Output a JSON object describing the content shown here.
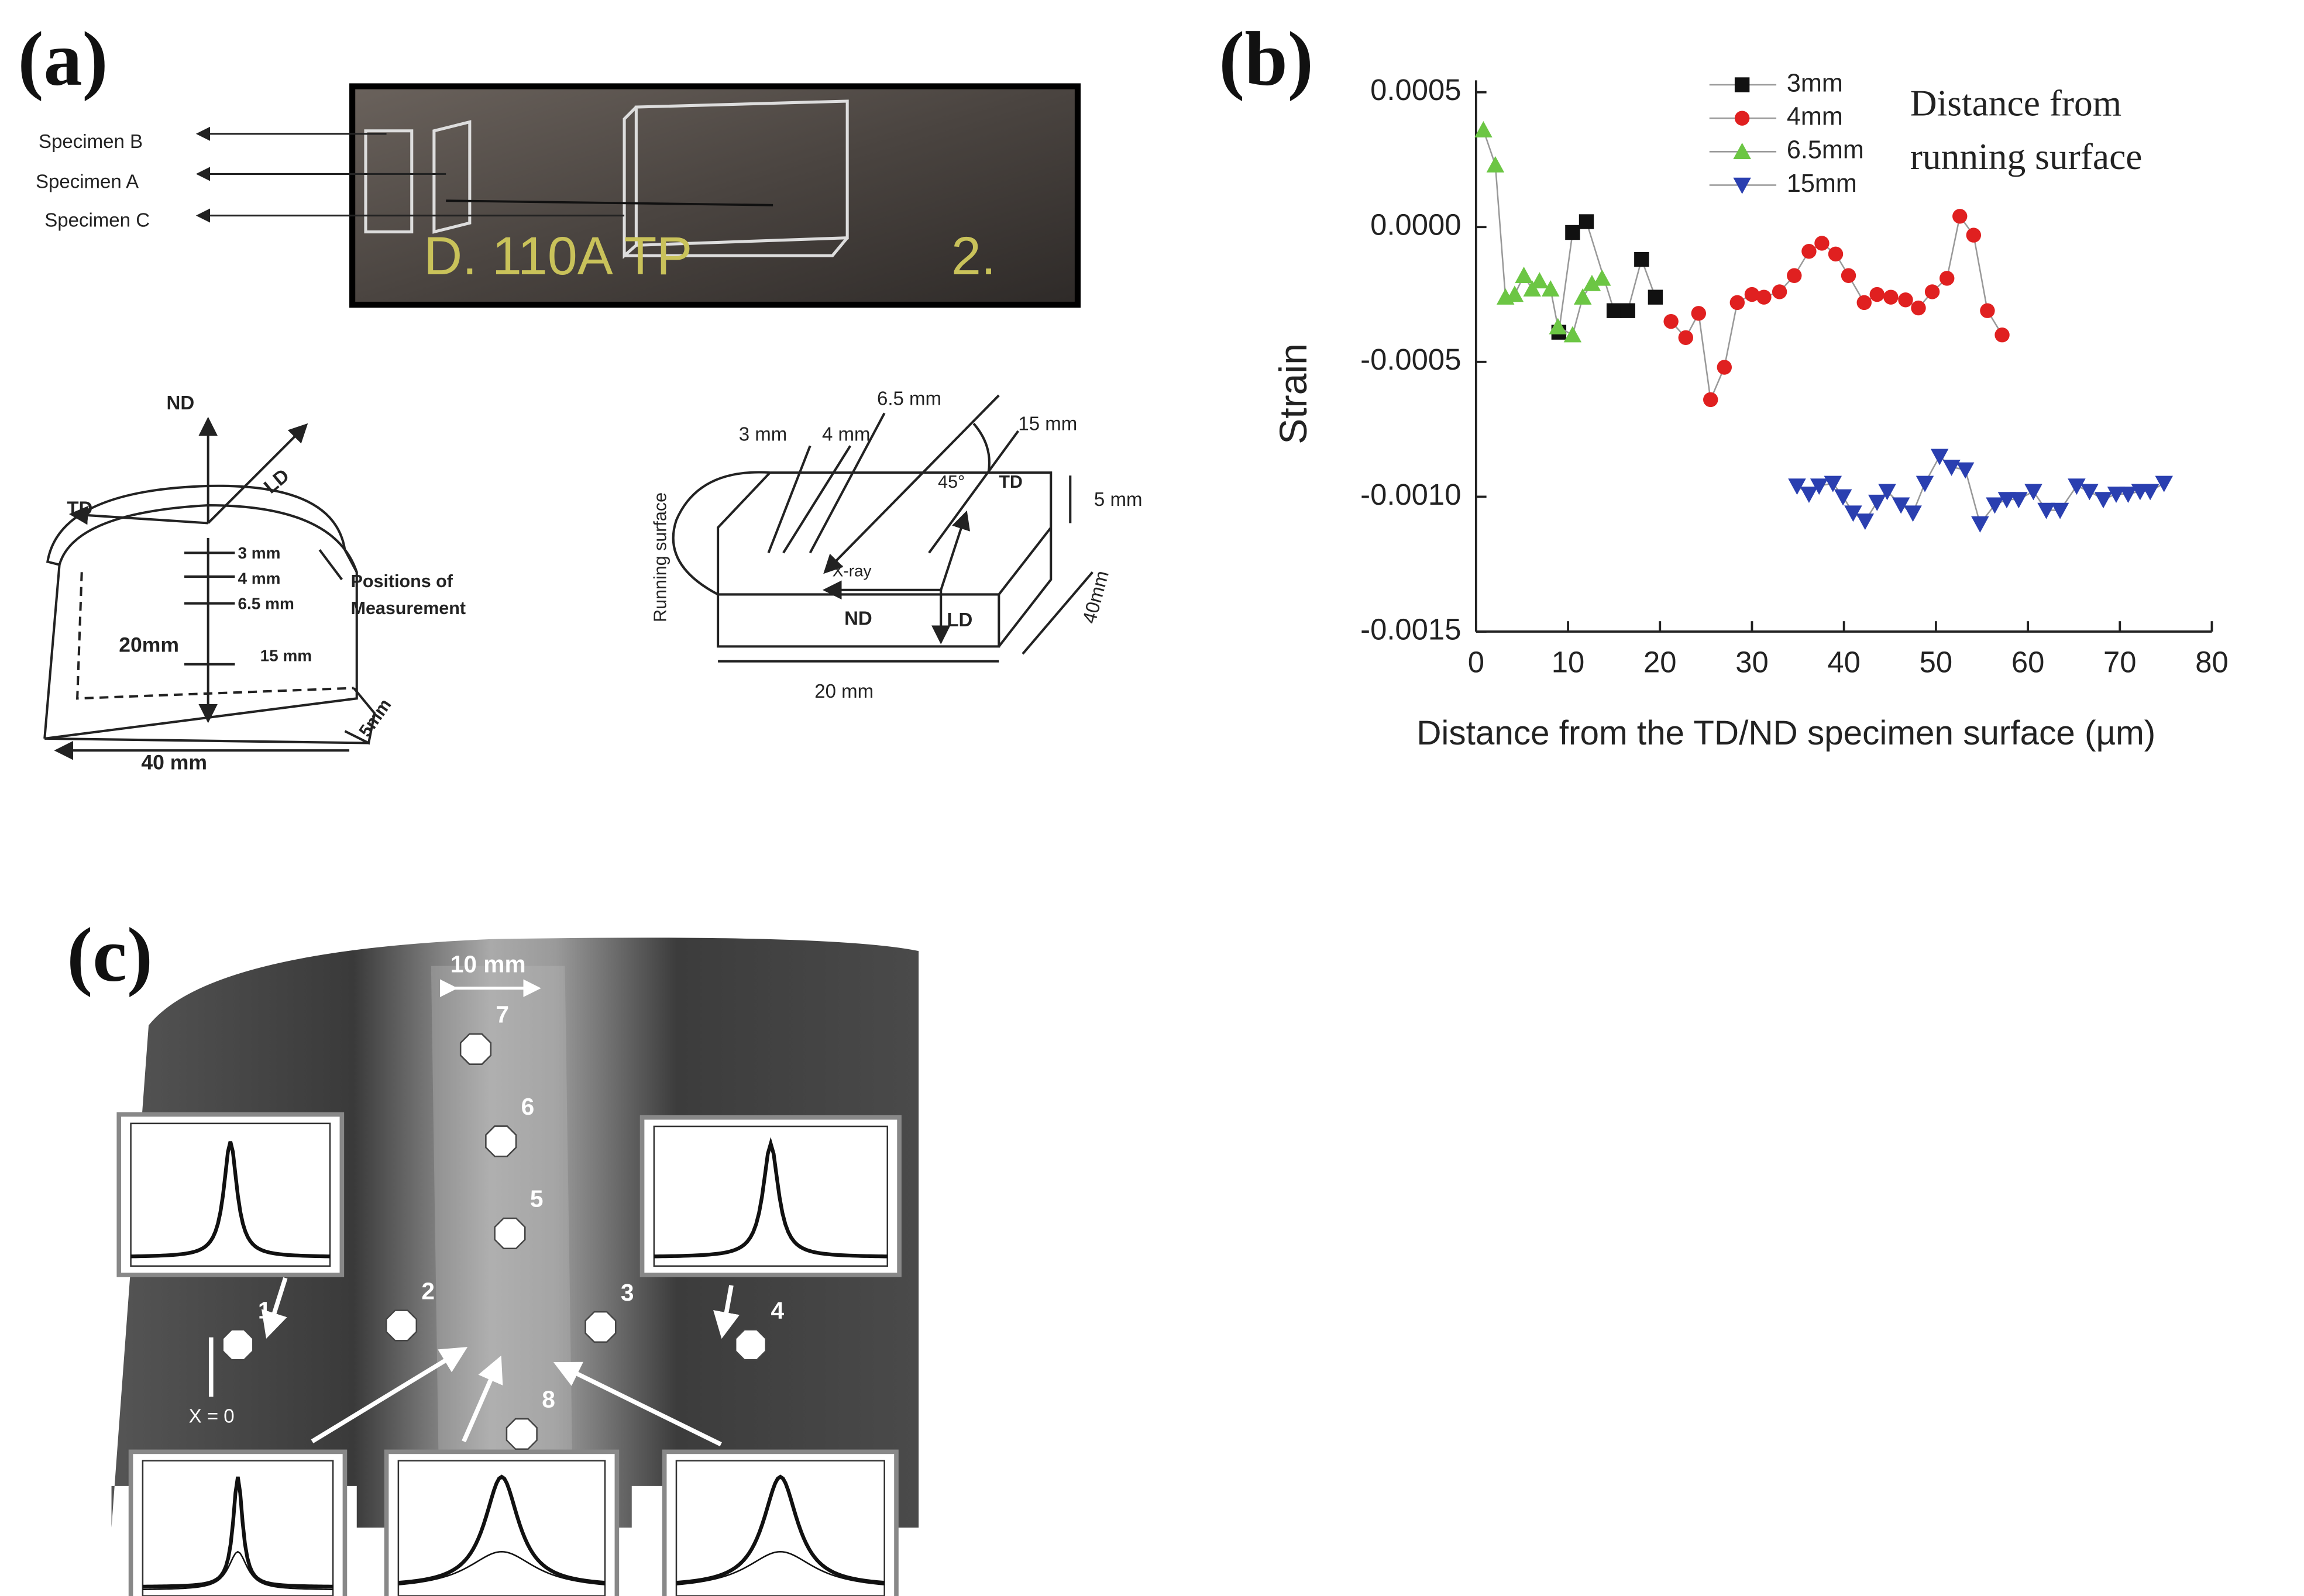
{
  "panel_labels": [
    "(a)",
    "(b)",
    "(c)"
  ],
  "panel_a": {
    "specimens": [
      "Specimen B",
      "Specimen A",
      "Specimen C"
    ],
    "marking": [
      "D. 110A TP",
      "2."
    ],
    "left_sketch": {
      "nd": "ND",
      "ld": "LD",
      "td": "TD",
      "depths": [
        "3 mm",
        "4 mm",
        "6.5 mm",
        "15 mm"
      ],
      "height": "20mm",
      "positions": [
        "Positions of",
        "Measurement"
      ],
      "width": "40 mm",
      "thickness": "5mm"
    },
    "right_sketch": {
      "depths": [
        "3 mm",
        "4 mm",
        "6.5 mm",
        "15 mm"
      ],
      "angle": "45°",
      "td": "TD",
      "thickness": "5 mm",
      "xray": "X-ray",
      "nd": "ND",
      "ld": "LD",
      "surface": "Running surface",
      "length": "40mm",
      "width": "20 mm"
    }
  },
  "chart_data": {
    "type": "line",
    "ylabel": "Strain",
    "xlabel": "Distance from the TD/ND specimen surface (µm)",
    "annotation": [
      "Distance from",
      "running surface"
    ],
    "xlim": [
      0,
      80
    ],
    "xticks": [
      0,
      10,
      20,
      30,
      40,
      50,
      60,
      70,
      80
    ],
    "ylim": [
      -0.0015,
      0.0005
    ],
    "yticks": [
      0.0005,
      {
        "value": 0,
        "label": "0.0000"
      },
      -0.0005,
      {
        "value": -0.001,
        "label": "-0.0010"
      },
      {
        "value": -0.0015,
        "label": "-0.0015"
      }
    ],
    "line_color": "#999999",
    "series": [
      {
        "name": "3mm",
        "color": "#111111",
        "marker": "square",
        "x": [
          9,
          10.5,
          12,
          15,
          16.5,
          18,
          19.5
        ],
        "values": [
          -0.00039,
          -2e-05,
          2e-05,
          -0.00031,
          -0.00031,
          -0.00012,
          -0.00026
        ]
      },
      {
        "name": "4mm",
        "color": "#e02020",
        "marker": "circle",
        "x": [
          21.2,
          22.8,
          24.2,
          25.5,
          27,
          28.4,
          30,
          31.3,
          33,
          34.6,
          36.2,
          37.6,
          39.1,
          40.5,
          42.2,
          43.6,
          45.1,
          46.7,
          48.1,
          49.6,
          51.2,
          52.6,
          54.1,
          55.6,
          57.2
        ],
        "values": [
          -0.00035,
          -0.00041,
          -0.00032,
          -0.00064,
          -0.00052,
          -0.00028,
          -0.00025,
          -0.00026,
          -0.00024,
          -0.00018,
          -9e-05,
          -6e-05,
          -0.0001,
          -0.00018,
          -0.00028,
          -0.00025,
          -0.00026,
          -0.00027,
          -0.0003,
          -0.00024,
          -0.00019,
          4e-05,
          -3e-05,
          -0.00031,
          -0.0004
        ]
      },
      {
        "name": "6.5mm",
        "color": "#6cc644",
        "marker": "triangle-up",
        "x": [
          0.8,
          2.1,
          3.2,
          4.2,
          5.2,
          6.1,
          6.9,
          8.1,
          8.9,
          10.5,
          11.6,
          12.6,
          13.7
        ],
        "values": [
          0.00036,
          0.00023,
          -0.00026,
          -0.00025,
          -0.00018,
          -0.00023,
          -0.0002,
          -0.00023,
          -0.00037,
          -0.0004,
          -0.00026,
          -0.00021,
          -0.00019
        ]
      },
      {
        "name": "15mm",
        "color": "#2a3fb0",
        "marker": "triangle-down",
        "x": [
          34.9,
          36.2,
          37.3,
          38.8,
          39.9,
          41,
          42.3,
          43.6,
          44.7,
          46.2,
          47.5,
          48.8,
          50.4,
          51.7,
          53.2,
          54.8,
          56.4,
          57.7,
          59,
          60.6,
          62,
          63.5,
          65.3,
          66.7,
          68.2,
          69.6,
          70.9,
          72.2,
          73.3,
          74.8
        ],
        "values": [
          -0.00096,
          -0.00099,
          -0.00096,
          -0.00095,
          -0.001,
          -0.00106,
          -0.00109,
          -0.00102,
          -0.00098,
          -0.00103,
          -0.00106,
          -0.00095,
          -0.00085,
          -0.00089,
          -0.0009,
          -0.0011,
          -0.00103,
          -0.00101,
          -0.00101,
          -0.00098,
          -0.00105,
          -0.00105,
          -0.00096,
          -0.00098,
          -0.00101,
          -0.00099,
          -0.00099,
          -0.00098,
          -0.00098,
          -0.00095
        ]
      }
    ]
  },
  "panel_c": {
    "scale": "10 mm",
    "points": [
      "1",
      "2",
      "3",
      "4",
      "5",
      "6",
      "7",
      "8"
    ],
    "origin": "X = 0"
  }
}
